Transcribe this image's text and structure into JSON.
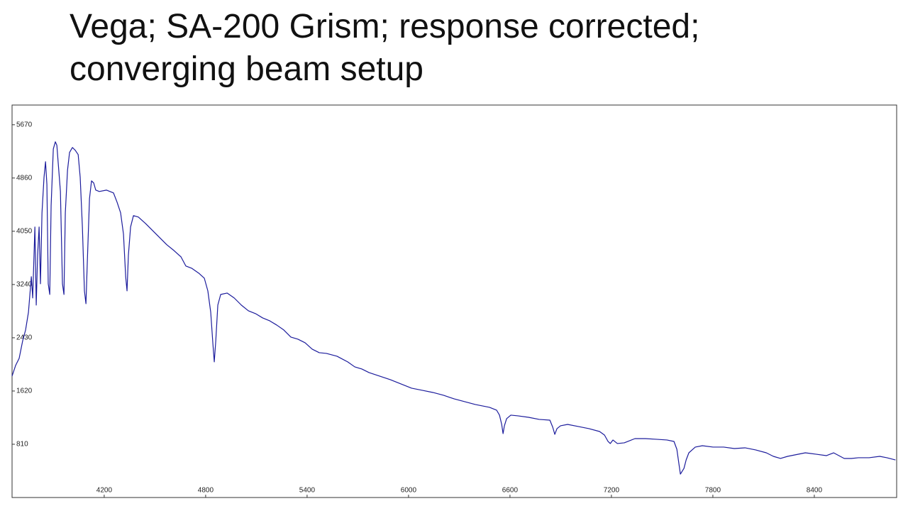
{
  "chart_data": {
    "type": "line",
    "title": "Vega; SA-200 Grism; response corrected; converging beam setup",
    "xlim": [
      3655,
      8887
    ],
    "ylim": [
      0,
      5970
    ],
    "xticks": [
      4200,
      4800,
      5400,
      6000,
      6600,
      7200,
      7800,
      8400
    ],
    "yticks": [
      810,
      1620,
      2430,
      3240,
      4050,
      4860,
      5670
    ],
    "grid": false,
    "x": [
      3655,
      3676,
      3697,
      3718,
      3735,
      3752,
      3769,
      3777,
      3790,
      3798,
      3806,
      3815,
      3823,
      3832,
      3844,
      3853,
      3861,
      3869,
      3878,
      3886,
      3899,
      3911,
      3920,
      3928,
      3941,
      3953,
      3962,
      3970,
      3983,
      3995,
      4012,
      4029,
      4046,
      4058,
      4071,
      4083,
      4092,
      4100,
      4113,
      4125,
      4138,
      4150,
      4171,
      4213,
      4255,
      4276,
      4297,
      4314,
      4327,
      4335,
      4343,
      4356,
      4373,
      4402,
      4444,
      4486,
      4528,
      4570,
      4612,
      4654,
      4683,
      4717,
      4759,
      4792,
      4813,
      4830,
      4843,
      4851,
      4860,
      4872,
      4889,
      4927,
      4969,
      5011,
      5053,
      5095,
      5137,
      5178,
      5220,
      5262,
      5304,
      5346,
      5388,
      5430,
      5472,
      5514,
      5577,
      5640,
      5682,
      5724,
      5766,
      5829,
      5892,
      5955,
      6018,
      6081,
      6144,
      6207,
      6269,
      6332,
      6395,
      6479,
      6521,
      6538,
      6551,
      6559,
      6567,
      6580,
      6605,
      6647,
      6710,
      6773,
      6836,
      6853,
      6865,
      6878,
      6899,
      6941,
      7004,
      7067,
      7130,
      7159,
      7180,
      7193,
      7209,
      7235,
      7276,
      7339,
      7402,
      7465,
      7528,
      7570,
      7587,
      7600,
      7608,
      7616,
      7629,
      7642,
      7658,
      7696,
      7738,
      7801,
      7864,
      7927,
      7990,
      8053,
      8116,
      8158,
      8200,
      8242,
      8284,
      8347,
      8409,
      8472,
      8514,
      8577,
      8619,
      8661,
      8724,
      8787,
      8829,
      8880
    ],
    "series": [
      {
        "color": "#1c1c9c",
        "values": [
          1847,
          2009,
          2117,
          2387,
          2549,
          2819,
          3359,
          3035,
          4115,
          2927,
          3683,
          4115,
          3251,
          4331,
          4871,
          5108,
          4763,
          3251,
          3089,
          4439,
          5303,
          5411,
          5357,
          5087,
          4655,
          3251,
          3089,
          4331,
          4979,
          5249,
          5324,
          5281,
          5216,
          4871,
          4115,
          3143,
          2948,
          3575,
          4547,
          4817,
          4784,
          4676,
          4655,
          4676,
          4633,
          4493,
          4331,
          4007,
          3359,
          3143,
          3683,
          4115,
          4288,
          4266,
          4169,
          4061,
          3953,
          3845,
          3758,
          3661,
          3521,
          3488,
          3413,
          3337,
          3143,
          2819,
          2333,
          2063,
          2387,
          2927,
          3089,
          3110,
          3035,
          2927,
          2840,
          2797,
          2732,
          2689,
          2624,
          2549,
          2441,
          2408,
          2354,
          2257,
          2203,
          2192,
          2149,
          2063,
          1987,
          1955,
          1901,
          1847,
          1793,
          1728,
          1663,
          1631,
          1598,
          1555,
          1501,
          1458,
          1415,
          1372,
          1328,
          1253,
          1112,
          972,
          1091,
          1199,
          1253,
          1242,
          1220,
          1188,
          1177,
          1069,
          961,
          1048,
          1091,
          1112,
          1080,
          1048,
          1004,
          950,
          853,
          821,
          875,
          821,
          832,
          896,
          896,
          886,
          875,
          853,
          734,
          497,
          356,
          389,
          443,
          572,
          680,
          767,
          788,
          767,
          767,
          745,
          756,
          724,
          680,
          626,
          594,
          626,
          648,
          680,
          659,
          637,
          680,
          594,
          594,
          605,
          605,
          626,
          605,
          572
        ]
      }
    ]
  }
}
